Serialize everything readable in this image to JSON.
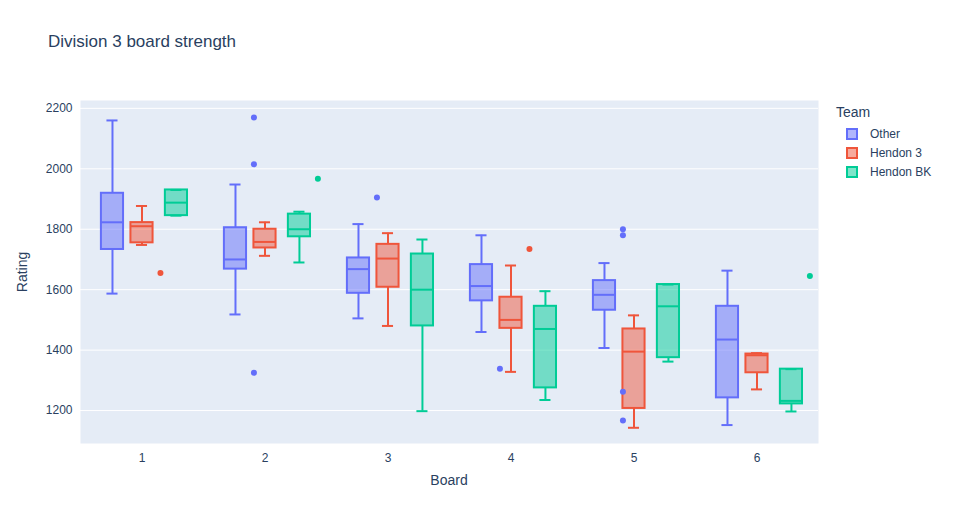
{
  "chart_data": {
    "type": "box",
    "title": "Division 3 board strength",
    "x_label": "Board",
    "y_label": "Rating",
    "legend_title": "Team",
    "legend": "top-right",
    "grid": true,
    "categories": [
      "1",
      "2",
      "3",
      "4",
      "5",
      "6"
    ],
    "ylim": [
      1091,
      2226
    ],
    "yticks": [
      1200,
      1400,
      1600,
      1800,
      2000,
      2200
    ],
    "series": [
      {
        "name": "Other",
        "color": "#636efa",
        "boxes": [
          {
            "min": 1587,
            "q1": 1733,
            "median": 1823,
            "q3": 1919,
            "max": 2160,
            "outliers": []
          },
          {
            "min": 1518,
            "q1": 1668,
            "median": 1700,
            "q3": 1805,
            "max": 1948,
            "outliers": [
              2170,
              2015,
              1325
            ]
          },
          {
            "min": 1505,
            "q1": 1588,
            "median": 1668,
            "q3": 1705,
            "max": 1817,
            "outliers": [
              1905
            ]
          },
          {
            "min": 1460,
            "q1": 1563,
            "median": 1612,
            "q3": 1683,
            "max": 1780,
            "outliers": [
              1338
            ]
          },
          {
            "min": 1407,
            "q1": 1532,
            "median": 1583,
            "q3": 1630,
            "max": 1688,
            "outliers": [
              1800,
              1780,
              1262,
              1167
            ]
          },
          {
            "min": 1152,
            "q1": 1242,
            "median": 1435,
            "q3": 1545,
            "max": 1663,
            "outliers": []
          }
        ]
      },
      {
        "name": "Hendon 3",
        "color": "#ef553b",
        "boxes": [
          {
            "min": 1748,
            "q1": 1755,
            "median": 1810,
            "q3": 1822,
            "max": 1877,
            "outliers": [
              1655
            ]
          },
          {
            "min": 1712,
            "q1": 1738,
            "median": 1758,
            "q3": 1800,
            "max": 1823,
            "outliers": []
          },
          {
            "min": 1480,
            "q1": 1608,
            "median": 1703,
            "q3": 1750,
            "max": 1787,
            "outliers": []
          },
          {
            "min": 1328,
            "q1": 1472,
            "median": 1500,
            "q3": 1575,
            "max": 1680,
            "outliers": [
              1735
            ]
          },
          {
            "min": 1143,
            "q1": 1207,
            "median": 1395,
            "q3": 1470,
            "max": 1515,
            "outliers": []
          },
          {
            "min": 1270,
            "q1": 1325,
            "median": 1383,
            "q3": 1387,
            "max": 1390,
            "outliers": []
          }
        ]
      },
      {
        "name": "Hendon BK",
        "color": "#00cc96",
        "boxes": [
          {
            "min": 1845,
            "q1": 1845,
            "median": 1888,
            "q3": 1930,
            "max": 1930,
            "outliers": []
          },
          {
            "min": 1690,
            "q1": 1775,
            "median": 1800,
            "q3": 1850,
            "max": 1858,
            "outliers": [
              1967
            ]
          },
          {
            "min": 1198,
            "q1": 1480,
            "median": 1600,
            "q3": 1718,
            "max": 1766,
            "outliers": []
          },
          {
            "min": 1235,
            "q1": 1275,
            "median": 1470,
            "q3": 1545,
            "max": 1595,
            "outliers": []
          },
          {
            "min": 1362,
            "q1": 1375,
            "median": 1545,
            "q3": 1617,
            "max": 1617,
            "outliers": []
          },
          {
            "min": 1197,
            "q1": 1222,
            "median": 1232,
            "q3": 1337,
            "max": 1337,
            "outliers": [
              1645
            ]
          }
        ]
      }
    ]
  }
}
